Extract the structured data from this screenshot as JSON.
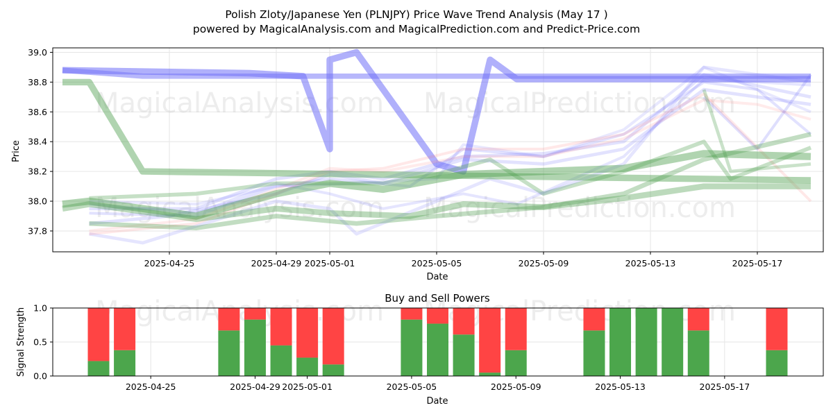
{
  "title_line1": "Polish Zloty/Japanese Yen (PLNJPY) Price Wave Trend Analysis (May 17 )",
  "title_line2": "powered by MagicalAnalysis.com and MagicalPrediction.com and Predict-Price.com",
  "watermarks": [
    "MagicalAnalysis.com",
    "MagicalPrediction.com"
  ],
  "chart_data": [
    {
      "type": "area",
      "title": "",
      "xlabel": "Date",
      "ylabel": "Price",
      "x_start": "2025-04-21",
      "x_end": "2025-05-19",
      "ylim": [
        37.66,
        39.03
      ],
      "grid": true,
      "xticks": [
        "2025-04-25",
        "2025-04-29",
        "2025-05-01",
        "2025-05-05",
        "2025-05-09",
        "2025-05-13",
        "2025-05-17"
      ],
      "yticks": [
        37.8,
        38.0,
        38.2,
        38.4,
        38.6,
        38.8,
        39.0
      ],
      "colors": {
        "blue": "#6f6ff8",
        "green": "#4f9f4f",
        "red": "#ff7070"
      },
      "series": [
        {
          "color": "blue",
          "width": 20,
          "opacity": 0.55,
          "points": [
            [
              "2025-04-21",
              38.88
            ],
            [
              "2025-04-28",
              38.86
            ],
            [
              "2025-04-30",
              38.84
            ],
            [
              "2025-05-01",
              38.35
            ],
            [
              "2025-05-01",
              38.95
            ],
            [
              "2025-05-02",
              39.0
            ],
            [
              "2025-05-05",
              38.25
            ],
            [
              "2025-05-06",
              38.2
            ],
            [
              "2025-05-07",
              38.95
            ],
            [
              "2025-05-08",
              38.82
            ],
            [
              "2025-05-19",
              38.82
            ]
          ]
        },
        {
          "color": "blue",
          "width": 16,
          "opacity": 0.5,
          "points": [
            [
              "2025-04-21",
              38.88
            ],
            [
              "2025-04-24",
              38.84
            ],
            [
              "2025-05-19",
              38.84
            ]
          ]
        },
        {
          "color": "blue",
          "width": 10,
          "opacity": 0.2,
          "points": [
            [
              "2025-04-22",
              37.95
            ],
            [
              "2025-04-26",
              37.95
            ],
            [
              "2025-04-29",
              38.15
            ],
            [
              "2025-05-01",
              38.2
            ],
            [
              "2025-05-03",
              38.15
            ],
            [
              "2025-05-06",
              38.3
            ],
            [
              "2025-05-09",
              38.32
            ],
            [
              "2025-05-12",
              38.4
            ],
            [
              "2025-05-15",
              38.85
            ],
            [
              "2025-05-19",
              38.7
            ]
          ]
        },
        {
          "color": "blue",
          "width": 10,
          "opacity": 0.2,
          "points": [
            [
              "2025-04-22",
              37.85
            ],
            [
              "2025-04-25",
              37.9
            ],
            [
              "2025-04-29",
              38.05
            ],
            [
              "2025-05-01",
              38.18
            ],
            [
              "2025-05-03",
              38.12
            ],
            [
              "2025-05-06",
              38.28
            ],
            [
              "2025-05-09",
              38.25
            ],
            [
              "2025-05-12",
              38.35
            ],
            [
              "2025-05-15",
              38.75
            ],
            [
              "2025-05-19",
              38.65
            ]
          ]
        },
        {
          "color": "blue",
          "width": 10,
          "opacity": 0.18,
          "points": [
            [
              "2025-04-22",
              37.78
            ],
            [
              "2025-04-24",
              37.72
            ],
            [
              "2025-04-29",
              38.0
            ],
            [
              "2025-05-01",
              37.95
            ],
            [
              "2025-05-02",
              37.78
            ],
            [
              "2025-05-05",
              38.0
            ],
            [
              "2025-05-07",
              38.15
            ],
            [
              "2025-05-09",
              38.05
            ],
            [
              "2025-05-12",
              38.25
            ],
            [
              "2025-05-15",
              38.9
            ],
            [
              "2025-05-19",
              38.8
            ]
          ]
        },
        {
          "color": "blue",
          "width": 8,
          "opacity": 0.2,
          "points": [
            [
              "2025-04-22",
              37.92
            ],
            [
              "2025-04-26",
              37.9
            ],
            [
              "2025-04-29",
              38.1
            ],
            [
              "2025-05-01",
              38.15
            ],
            [
              "2025-05-04",
              38.1
            ],
            [
              "2025-05-06",
              38.35
            ],
            [
              "2025-05-09",
              38.3
            ],
            [
              "2025-05-12",
              38.45
            ],
            [
              "2025-05-15",
              38.8
            ],
            [
              "2025-05-17",
              38.75
            ],
            [
              "2025-05-19",
              38.45
            ]
          ]
        },
        {
          "color": "blue",
          "width": 8,
          "opacity": 0.18,
          "points": [
            [
              "2025-04-22",
              37.98
            ],
            [
              "2025-04-26",
              37.92
            ],
            [
              "2025-04-29",
              38.12
            ],
            [
              "2025-05-01",
              38.05
            ],
            [
              "2025-05-03",
              37.95
            ],
            [
              "2025-05-06",
              38.05
            ],
            [
              "2025-05-08",
              37.98
            ],
            [
              "2025-05-12",
              38.3
            ],
            [
              "2025-05-15",
              38.82
            ],
            [
              "2025-05-19",
              38.78
            ]
          ]
        },
        {
          "color": "blue",
          "width": 7,
          "opacity": 0.16,
          "points": [
            [
              "2025-04-22",
              38.0
            ],
            [
              "2025-04-26",
              37.98
            ],
            [
              "2025-04-29",
              38.1
            ],
            [
              "2025-05-02",
              38.12
            ],
            [
              "2025-05-05",
              38.15
            ],
            [
              "2025-05-06",
              38.38
            ],
            [
              "2025-05-09",
              38.3
            ],
            [
              "2025-05-12",
              38.48
            ],
            [
              "2025-05-15",
              38.9
            ],
            [
              "2025-05-19",
              38.6
            ]
          ]
        },
        {
          "color": "blue",
          "width": 6,
          "opacity": 0.22,
          "points": [
            [
              "2025-05-15",
              38.7
            ],
            [
              "2025-05-17",
              38.35
            ],
            [
              "2025-05-19",
              38.85
            ]
          ]
        },
        {
          "color": "red",
          "width": 7,
          "opacity": 0.16,
          "points": [
            [
              "2025-04-22",
              37.78
            ],
            [
              "2025-04-26",
              37.85
            ],
            [
              "2025-04-29",
              38.05
            ],
            [
              "2025-05-01",
              38.2
            ],
            [
              "2025-05-03",
              38.22
            ],
            [
              "2025-05-06",
              38.35
            ],
            [
              "2025-05-09",
              38.35
            ],
            [
              "2025-05-12",
              38.45
            ],
            [
              "2025-05-15",
              38.72
            ],
            [
              "2025-05-19",
              38.0
            ]
          ]
        },
        {
          "color": "red",
          "width": 5,
          "opacity": 0.14,
          "points": [
            [
              "2025-04-22",
              37.8
            ],
            [
              "2025-04-26",
              37.88
            ],
            [
              "2025-04-29",
              38.08
            ],
            [
              "2025-05-01",
              38.22
            ],
            [
              "2025-05-03",
              38.2
            ],
            [
              "2025-05-06",
              38.3
            ],
            [
              "2025-05-09",
              38.3
            ],
            [
              "2025-05-12",
              38.42
            ],
            [
              "2025-05-15",
              38.68
            ],
            [
              "2025-05-17",
              38.65
            ],
            [
              "2025-05-19",
              38.55
            ]
          ]
        },
        {
          "color": "green",
          "width": 20,
          "opacity": 0.45,
          "points": [
            [
              "2025-04-21",
              38.8
            ],
            [
              "2025-04-22",
              38.8
            ],
            [
              "2025-04-24",
              38.2
            ],
            [
              "2025-05-19",
              38.14
            ]
          ]
        },
        {
          "color": "green",
          "width": 22,
          "opacity": 0.45,
          "points": [
            [
              "2025-04-21",
              37.98
            ],
            [
              "2025-04-22",
              38.0
            ],
            [
              "2025-04-26",
              37.9
            ],
            [
              "2025-04-29",
              38.05
            ],
            [
              "2025-05-01",
              38.12
            ],
            [
              "2025-05-03",
              38.08
            ],
            [
              "2025-05-06",
              38.18
            ],
            [
              "2025-05-09",
              38.2
            ],
            [
              "2025-05-12",
              38.22
            ],
            [
              "2025-05-15",
              38.32
            ],
            [
              "2025-05-19",
              38.3
            ]
          ]
        },
        {
          "color": "green",
          "width": 18,
          "opacity": 0.38,
          "points": [
            [
              "2025-04-21",
              37.95
            ],
            [
              "2025-04-22",
              37.98
            ],
            [
              "2025-04-26",
              37.88
            ],
            [
              "2025-04-29",
              37.95
            ],
            [
              "2025-05-01",
              37.92
            ],
            [
              "2025-05-04",
              37.9
            ],
            [
              "2025-05-06",
              37.98
            ],
            [
              "2025-05-09",
              37.96
            ],
            [
              "2025-05-12",
              38.02
            ],
            [
              "2025-05-15",
              38.1
            ],
            [
              "2025-05-19",
              38.1
            ]
          ]
        },
        {
          "color": "green",
          "width": 14,
          "opacity": 0.35,
          "points": [
            [
              "2025-04-22",
              37.85
            ],
            [
              "2025-04-26",
              37.82
            ],
            [
              "2025-04-29",
              37.9
            ],
            [
              "2025-05-02",
              37.85
            ],
            [
              "2025-05-05",
              37.9
            ],
            [
              "2025-05-07",
              37.93
            ],
            [
              "2025-05-09",
              37.96
            ],
            [
              "2025-05-12",
              38.05
            ],
            [
              "2025-05-15",
              38.28
            ],
            [
              "2025-05-19",
              38.45
            ]
          ]
        },
        {
          "color": "green",
          "width": 12,
          "opacity": 0.32,
          "points": [
            [
              "2025-04-22",
              38.02
            ],
            [
              "2025-04-26",
              38.05
            ],
            [
              "2025-04-29",
              38.12
            ],
            [
              "2025-05-01",
              38.12
            ],
            [
              "2025-05-03",
              38.12
            ],
            [
              "2025-05-05",
              38.18
            ],
            [
              "2025-05-07",
              38.28
            ],
            [
              "2025-05-09",
              38.05
            ],
            [
              "2025-05-12",
              38.2
            ],
            [
              "2025-05-15",
              38.4
            ],
            [
              "2025-05-16",
              38.15
            ],
            [
              "2025-05-19",
              38.36
            ]
          ]
        },
        {
          "color": "green",
          "width": 10,
          "opacity": 0.3,
          "points": [
            [
              "2025-05-15",
              38.75
            ],
            [
              "2025-05-16",
              38.2
            ],
            [
              "2025-05-19",
              38.25
            ]
          ]
        }
      ]
    },
    {
      "type": "bar",
      "title": "Buy and Sell Powers",
      "xlabel": "Date",
      "ylabel": "Signal Strength",
      "ylim": [
        0,
        1
      ],
      "yticks": [
        "0.0",
        "0.5",
        "1.0"
      ],
      "xticks": [
        "2025-04-25",
        "2025-04-29",
        "2025-05-01",
        "2025-05-05",
        "2025-05-09",
        "2025-05-13",
        "2025-05-17"
      ],
      "grid": true,
      "colors": {
        "buy": "#4ca64c",
        "sell": "#ff4444"
      },
      "dates": [
        "2025-04-23",
        "2025-04-24",
        "2025-04-28",
        "2025-04-29",
        "2025-04-30",
        "2025-05-01",
        "2025-05-02",
        "2025-05-05",
        "2025-05-06",
        "2025-05-07",
        "2025-05-08",
        "2025-05-09",
        "2025-05-12",
        "2025-05-13",
        "2025-05-14",
        "2025-05-15",
        "2025-05-16",
        "2025-05-19"
      ],
      "buy": [
        0.22,
        0.38,
        0.67,
        0.83,
        0.45,
        0.27,
        0.17,
        0.83,
        0.77,
        0.61,
        0.05,
        0.38,
        0.67,
        1.0,
        1.0,
        1.0,
        0.67,
        0.38
      ],
      "sell": [
        0.78,
        0.62,
        0.33,
        0.17,
        0.55,
        0.73,
        0.83,
        0.17,
        0.23,
        0.39,
        0.95,
        0.62,
        0.33,
        0.0,
        0.0,
        0.0,
        0.33,
        0.62
      ]
    }
  ]
}
